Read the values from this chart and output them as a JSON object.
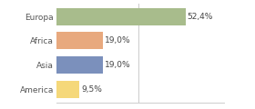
{
  "categories": [
    "America",
    "Asia",
    "Africa",
    "Europa"
  ],
  "values": [
    9.5,
    19.0,
    19.0,
    52.4
  ],
  "labels": [
    "9,5%",
    "19,0%",
    "19,0%",
    "52,4%"
  ],
  "bar_colors": [
    "#f5d87a",
    "#7b90bc",
    "#e8a97e",
    "#a8bc8c"
  ],
  "xlim": [
    0,
    68
  ],
  "background_color": "#ffffff",
  "bar_height": 0.72,
  "label_fontsize": 6.5,
  "tick_fontsize": 6.5,
  "grid_color": "#cccccc",
  "grid_x": [
    33.3
  ]
}
